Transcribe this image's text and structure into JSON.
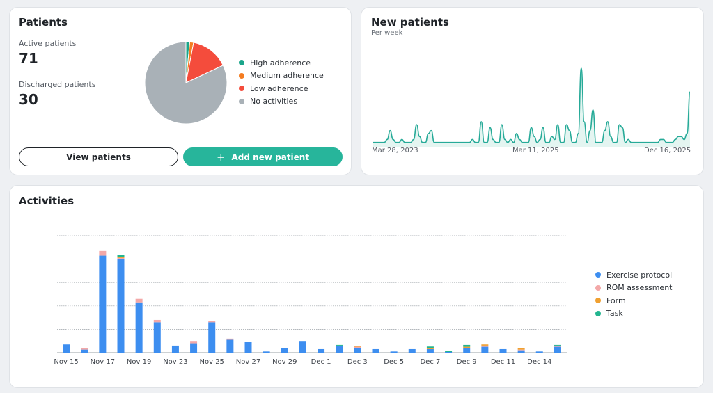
{
  "patients": {
    "title": "Patients",
    "active_label": "Active patients",
    "active_value": "71",
    "discharged_label": "Discharged patients",
    "discharged_value": "30",
    "view_button": "View patients",
    "add_button": "Add new patient",
    "legend": [
      {
        "label": "High adherence",
        "color": "#1aa58a"
      },
      {
        "label": "Medium adherence",
        "color": "#f47c20"
      },
      {
        "label": "Low adherence",
        "color": "#f44c3c"
      },
      {
        "label": "No activities",
        "color": "#a9b1b7"
      }
    ]
  },
  "new_patients": {
    "title": "New patients",
    "subtitle": "Per week",
    "x_ticks": [
      "Mar 28, 2023",
      "Mar 11, 2025",
      "Dec 16, 2025"
    ]
  },
  "activities": {
    "title": "Activities",
    "legend": [
      {
        "label": "Exercise protocol",
        "color": "#3d8ef0"
      },
      {
        "label": "ROM assessment",
        "color": "#f3a8a8"
      },
      {
        "label": "Form",
        "color": "#f0a030"
      },
      {
        "label": "Task",
        "color": "#22b58f"
      }
    ]
  },
  "chart_data": [
    {
      "type": "pie",
      "categories": [
        "High adherence",
        "Medium adherence",
        "Low adherence",
        "No activities"
      ],
      "values": [
        1.5,
        1.5,
        15,
        82
      ],
      "colors": [
        "#1aa58a",
        "#f47c20",
        "#f44c3c",
        "#a9b1b7"
      ]
    },
    {
      "type": "line",
      "title": "New patients",
      "subtitle": "Per week",
      "x_ticks": [
        "Mar 28, 2023",
        "Mar 11, 2025",
        "Dec 16, 2025"
      ],
      "values": [
        1,
        1,
        1,
        1,
        1,
        2,
        5,
        2,
        1,
        1,
        2,
        1,
        1,
        1,
        2,
        7,
        3,
        1,
        1,
        4,
        5,
        1,
        1,
        1,
        1,
        1,
        1,
        1,
        1,
        1,
        1,
        1,
        1,
        1,
        2,
        1,
        1,
        8,
        1,
        1,
        6,
        2,
        1,
        1,
        7,
        2,
        1,
        2,
        1,
        4,
        2,
        1,
        1,
        1,
        6,
        3,
        1,
        2,
        6,
        1,
        1,
        3,
        2,
        7,
        1,
        1,
        7,
        5,
        1,
        1,
        4,
        26,
        8,
        1,
        5,
        12,
        1,
        1,
        1,
        5,
        8,
        3,
        1,
        1,
        7,
        6,
        1,
        2,
        1,
        1,
        1,
        1,
        1,
        1,
        1,
        1,
        1,
        1,
        2,
        2,
        1,
        1,
        1,
        2,
        3,
        3,
        2,
        4,
        18
      ],
      "ylim": [
        0,
        30
      ],
      "grid": false
    },
    {
      "type": "bar",
      "stacked": true,
      "title": "Activities",
      "categories": [
        "Nov 15",
        "Nov 16",
        "Nov 17",
        "Nov 18",
        "Nov 19",
        "Nov 20",
        "Nov 23",
        "Nov 24",
        "Nov 25",
        "Nov 26",
        "Nov 27",
        "Nov 28",
        "Nov 29",
        "Nov 30",
        "Dec 1",
        "Dec 2",
        "Dec 3",
        "Dec 4",
        "Dec 5",
        "Dec 6",
        "Dec 7",
        "Dec 8",
        "Dec 9",
        "Dec 10",
        "Dec 11",
        "Dec 12",
        "Dec 14",
        "Dec 15"
      ],
      "x_tick_labels": [
        "Nov 15",
        "Nov 17",
        "Nov 19",
        "Nov 23",
        "Nov 25",
        "Nov 27",
        "Nov 29",
        "Dec 1",
        "Dec 3",
        "Dec 5",
        "Dec 7",
        "Dec 9",
        "Dec 11",
        "Dec 14"
      ],
      "series": [
        {
          "name": "Exercise protocol",
          "color": "#3d8ef0",
          "values": [
            3.5,
            1.3,
            41.5,
            40,
            21.5,
            13,
            3,
            4,
            13,
            5.5,
            4.5,
            0.5,
            2,
            5,
            1.5,
            3,
            2,
            1.5,
            0.5,
            1.5,
            1.5,
            0.3,
            2,
            2.5,
            1.5,
            1,
            0.5,
            2.5
          ]
        },
        {
          "name": "ROM assessment",
          "color": "#f3a8a8",
          "values": [
            0,
            0.5,
            2,
            0.5,
            1.5,
            1,
            0,
            1,
            0.5,
            0.5,
            0,
            0,
            0,
            0,
            0,
            0,
            0.5,
            0,
            0,
            0,
            0,
            0,
            0,
            0.5,
            0,
            0.3,
            0,
            0.5
          ]
        },
        {
          "name": "Form",
          "color": "#f0a030",
          "values": [
            0,
            0,
            0,
            0.5,
            0,
            0,
            0,
            0,
            0,
            0,
            0,
            0,
            0,
            0,
            0,
            0,
            0.3,
            0,
            0,
            0,
            0.3,
            0,
            0.5,
            0.5,
            0,
            0.5,
            0,
            0
          ]
        },
        {
          "name": "Task",
          "color": "#22b58f",
          "values": [
            0,
            0,
            0,
            0.7,
            0,
            0,
            0,
            0,
            0,
            0,
            0,
            0,
            0,
            0,
            0,
            0.3,
            0,
            0,
            0,
            0,
            0.8,
            0.3,
            0.8,
            0,
            0,
            0,
            0,
            0.3
          ]
        }
      ],
      "ylim": [
        0,
        50
      ],
      "grid": true,
      "legend_position": "right"
    }
  ]
}
